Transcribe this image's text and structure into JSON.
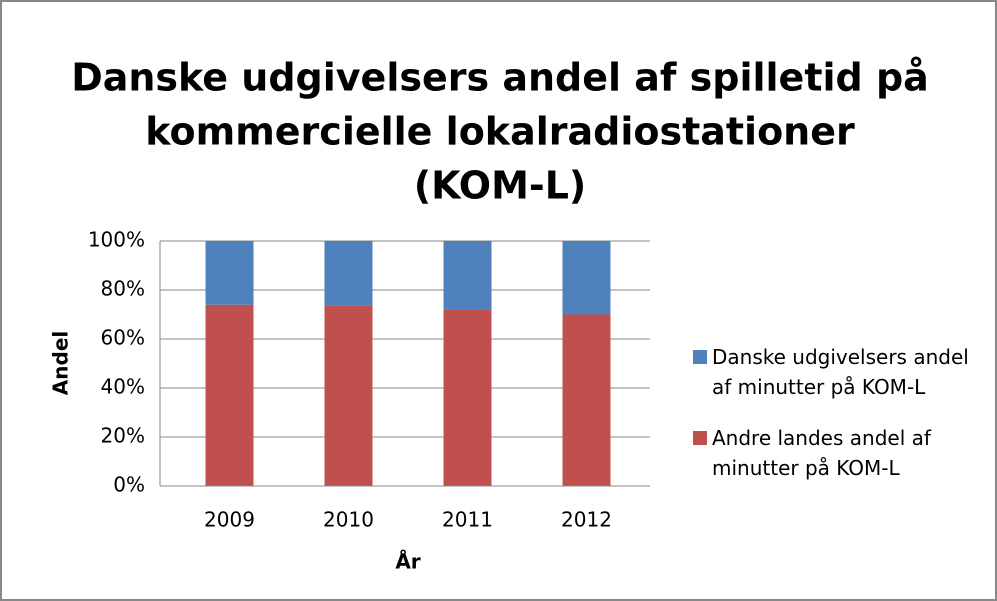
{
  "chart_data": {
    "type": "stacked_bar",
    "title": [
      "Danske udgivelsers andel af spilletid på",
      "kommercielle lokalradiostationer",
      "(KOM-L)"
    ],
    "x_label": "År",
    "y_label": "Andel",
    "categories": [
      "2009",
      "2010",
      "2011",
      "2012"
    ],
    "series": [
      {
        "name": "Danske udgivelsers andel af minutter på KOM-L",
        "color": "#4f81bd",
        "values": [
          26,
          26.5,
          28,
          30
        ]
      },
      {
        "name": "Andre landes andel af minutter på KOM-L",
        "color": "#c0504d",
        "values": [
          74,
          73.5,
          72,
          70
        ]
      }
    ],
    "ylim": [
      0,
      100
    ],
    "yticks": [
      {
        "value": 0,
        "label": "0%"
      },
      {
        "value": 20,
        "label": "20%"
      },
      {
        "value": 40,
        "label": "40%"
      },
      {
        "value": 60,
        "label": "60%"
      },
      {
        "value": 80,
        "label": "80%"
      },
      {
        "value": 100,
        "label": "100%"
      }
    ],
    "grid": true,
    "legend": "right"
  }
}
